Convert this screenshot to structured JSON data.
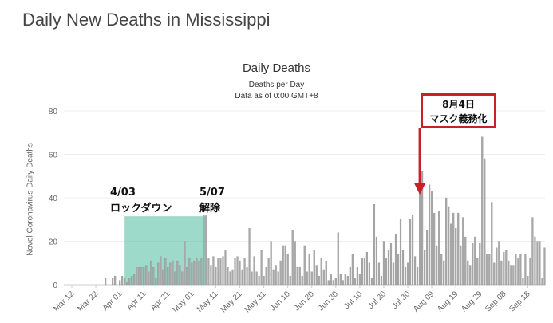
{
  "page": {
    "title": "Daily New Deaths in Mississippi"
  },
  "colors": {
    "bar": "#a8a8a8",
    "bar_stroke": "#8c8c8c",
    "shade": "#5cc2a6",
    "arrow": "#c9202a"
  },
  "annotations": {
    "lockdown_date": "4/03",
    "lockdown_label": "ロックダウン",
    "lift_date": "5/07",
    "lift_label": "解除",
    "mask_date": "8月4日",
    "mask_label": "マスク義務化"
  },
  "chart_data": {
    "type": "bar",
    "title": "Daily Deaths",
    "subtitle": "Deaths per Day",
    "subtitle2": "Data as of 0:00 GMT+8",
    "ylabel": "Novel Coronavirus Daily Deaths",
    "xlabel": "",
    "ylim": [
      0,
      80
    ],
    "yticks": [
      0,
      20,
      40,
      60,
      80
    ],
    "x_start": "Mar 12",
    "x_ticks": [
      "Mar 12",
      "Mar 22",
      "Apr 01",
      "Apr 11",
      "Apr 21",
      "May 01",
      "May 11",
      "May 21",
      "May 31",
      "Jun 10",
      "Jun 20",
      "Jun 30",
      "Jul 10",
      "Jul 20",
      "Jul 30",
      "Aug 09",
      "Aug 19",
      "Aug 29",
      "Sep 08",
      "Sep 18"
    ],
    "grid": true,
    "highlight_range": [
      "Apr 03",
      "May 07"
    ],
    "marker": "Aug 04",
    "values": [
      0,
      0,
      0,
      0,
      0,
      0,
      0,
      0,
      0,
      0,
      0,
      0,
      0,
      0,
      3,
      0,
      0,
      3,
      4,
      0,
      2,
      4,
      3,
      1,
      3,
      4,
      5,
      8,
      8,
      8,
      8,
      9,
      6,
      11,
      8,
      3,
      10,
      13,
      7,
      12,
      8,
      10,
      11,
      6,
      11,
      9,
      6,
      20,
      8,
      12,
      10,
      11,
      12,
      11,
      12,
      32,
      32,
      12,
      9,
      13,
      8,
      12,
      12,
      13,
      16,
      8,
      6,
      7,
      12,
      13,
      11,
      7,
      12,
      8,
      26,
      6,
      13,
      6,
      4,
      16,
      4,
      8,
      12,
      20,
      7,
      9,
      6,
      11,
      18,
      18,
      14,
      4,
      25,
      20,
      8,
      8,
      4,
      18,
      6,
      14,
      6,
      16,
      9,
      4,
      12,
      7,
      11,
      2,
      5,
      2,
      3,
      24,
      5,
      2,
      5,
      4,
      8,
      14,
      3,
      8,
      5,
      12,
      12,
      15,
      10,
      3,
      37,
      22,
      10,
      4,
      20,
      12,
      16,
      19,
      10,
      23,
      14,
      30,
      16,
      8,
      10,
      30,
      32,
      13,
      8,
      48,
      52,
      16,
      25,
      46,
      43,
      33,
      18,
      34,
      14,
      11,
      40,
      36,
      28,
      33,
      26,
      33,
      18,
      31,
      22,
      11,
      9,
      19,
      22,
      12,
      19,
      68,
      58,
      14,
      14,
      38,
      10,
      17,
      20,
      11,
      15,
      16,
      11,
      9,
      9,
      14,
      12,
      14,
      3,
      14,
      4,
      12,
      31,
      22,
      20,
      20,
      3,
      17
    ]
  }
}
